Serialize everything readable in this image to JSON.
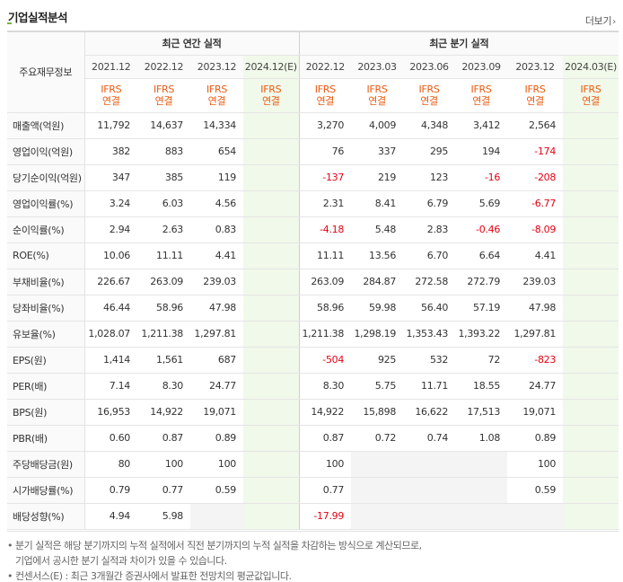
{
  "header": {
    "title": "기업실적분석",
    "more_label": "더보기"
  },
  "table": {
    "row_header_label": "주요재무정보",
    "annual_group": "최근 연간 실적",
    "quarter_group": "최근 분기 실적",
    "annual_dates": [
      "2021.12",
      "2022.12",
      "2023.12",
      "2024.12(E)"
    ],
    "quarter_dates": [
      "2022.12",
      "2023.03",
      "2023.06",
      "2023.09",
      "2023.12",
      "2024.03(E)"
    ],
    "ifrs_top": "IFRS",
    "ifrs_bottom": "연결",
    "rows": [
      {
        "label": "매출액(억원)",
        "annual": [
          "11,792",
          "14,637",
          "14,334",
          ""
        ],
        "quarter": [
          "3,270",
          "4,009",
          "4,348",
          "3,412",
          "2,564",
          ""
        ]
      },
      {
        "label": "영업이익(억원)",
        "annual": [
          "382",
          "883",
          "654",
          ""
        ],
        "quarter": [
          "76",
          "337",
          "295",
          "194",
          "-174",
          ""
        ]
      },
      {
        "label": "당기순이익(억원)",
        "annual": [
          "347",
          "385",
          "119",
          ""
        ],
        "quarter": [
          "-137",
          "219",
          "123",
          "-16",
          "-208",
          ""
        ]
      },
      {
        "label": "영업이익률(%)",
        "annual": [
          "3.24",
          "6.03",
          "4.56",
          ""
        ],
        "quarter": [
          "2.31",
          "8.41",
          "6.79",
          "5.69",
          "-6.77",
          ""
        ]
      },
      {
        "label": "순이익률(%)",
        "annual": [
          "2.94",
          "2.63",
          "0.83",
          ""
        ],
        "quarter": [
          "-4.18",
          "5.48",
          "2.83",
          "-0.46",
          "-8.09",
          ""
        ]
      },
      {
        "label": "ROE(%)",
        "annual": [
          "10.06",
          "11.11",
          "4.41",
          ""
        ],
        "quarter": [
          "11.11",
          "13.56",
          "6.70",
          "6.64",
          "4.41",
          ""
        ]
      },
      {
        "label": "부채비율(%)",
        "annual": [
          "226.67",
          "263.09",
          "239.03",
          ""
        ],
        "quarter": [
          "263.09",
          "284.87",
          "272.58",
          "272.79",
          "239.03",
          ""
        ]
      },
      {
        "label": "당좌비율(%)",
        "annual": [
          "46.44",
          "58.96",
          "47.98",
          ""
        ],
        "quarter": [
          "58.96",
          "59.98",
          "56.40",
          "57.19",
          "47.98",
          ""
        ]
      },
      {
        "label": "유보율(%)",
        "annual": [
          "1,028.07",
          "1,211.38",
          "1,297.81",
          ""
        ],
        "quarter": [
          "1,211.38",
          "1,298.19",
          "1,353.43",
          "1,393.22",
          "1,297.81",
          ""
        ]
      },
      {
        "label": "EPS(원)",
        "annual": [
          "1,414",
          "1,561",
          "687",
          ""
        ],
        "quarter": [
          "-504",
          "925",
          "532",
          "72",
          "-823",
          ""
        ]
      },
      {
        "label": "PER(배)",
        "annual": [
          "7.14",
          "8.30",
          "24.77",
          ""
        ],
        "quarter": [
          "8.30",
          "5.75",
          "11.71",
          "18.55",
          "24.77",
          ""
        ]
      },
      {
        "label": "BPS(원)",
        "annual": [
          "16,953",
          "14,922",
          "19,071",
          ""
        ],
        "quarter": [
          "14,922",
          "15,898",
          "16,622",
          "17,513",
          "19,071",
          ""
        ]
      },
      {
        "label": "PBR(배)",
        "annual": [
          "0.60",
          "0.87",
          "0.89",
          ""
        ],
        "quarter": [
          "0.87",
          "0.72",
          "0.74",
          "1.08",
          "0.89",
          ""
        ]
      },
      {
        "label": "주당배당금(원)",
        "annual": [
          "80",
          "100",
          "100",
          ""
        ],
        "quarter": [
          "100",
          "",
          "",
          "",
          "100",
          ""
        ]
      },
      {
        "label": "시가배당률(%)",
        "annual": [
          "0.79",
          "0.77",
          "0.59",
          ""
        ],
        "quarter": [
          "0.77",
          "",
          "",
          "",
          "0.59",
          ""
        ]
      },
      {
        "label": "배당성향(%)",
        "annual": [
          "4.94",
          "5.98",
          "",
          ""
        ],
        "quarter": [
          "-17.99",
          "",
          "",
          "",
          "",
          ""
        ]
      }
    ]
  },
  "notes": {
    "line1": "분기 실적은 해당 분기까지의 누적 실적에서 직전 분기까지의 누적 실적을 차감하는 방식으로 계산되므로,",
    "line2": "기업에서 공시한 분기 실적과 차이가 있을 수 있습니다.",
    "line3": "컨센서스(E) : 최근 3개월간 증권사에서 발표한 전망치의 평균값입니다."
  },
  "colors": {
    "negative": "#e60012",
    "ifrs": "#ea5a12",
    "estimate_bg": "#f1f9ea",
    "accent": "#7cb342"
  }
}
